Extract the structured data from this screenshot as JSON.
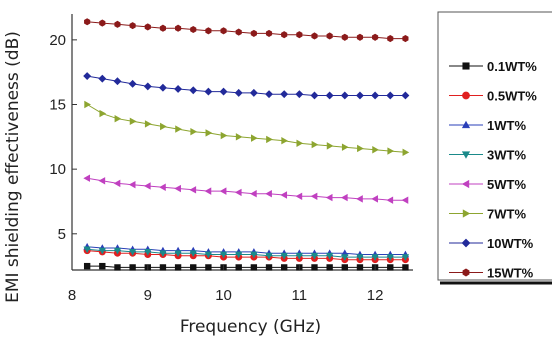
{
  "chart_data": {
    "type": "line",
    "xlabel": "Frequency (GHz)",
    "ylabel": "EMI shielding effectiveness (dB)",
    "xlim": [
      8,
      12.5
    ],
    "ylim": [
      2.2,
      22
    ],
    "x_ticks": [
      8,
      9,
      10,
      11,
      12
    ],
    "y_ticks": [
      5,
      10,
      15,
      20
    ],
    "grid": false,
    "legend_position": "right",
    "x": [
      8.2,
      8.4,
      8.6,
      8.8,
      9.0,
      9.2,
      9.4,
      9.6,
      9.8,
      10.0,
      10.2,
      10.4,
      10.6,
      10.8,
      11.0,
      11.2,
      11.4,
      11.6,
      11.8,
      12.0,
      12.2,
      12.4
    ],
    "series": [
      {
        "name": "0.1WT%",
        "color": "#111111",
        "marker": "square",
        "values": [
          2.5,
          2.5,
          2.4,
          2.4,
          2.4,
          2.4,
          2.4,
          2.4,
          2.4,
          2.4,
          2.4,
          2.4,
          2.4,
          2.4,
          2.4,
          2.4,
          2.4,
          2.4,
          2.4,
          2.4,
          2.4,
          2.4
        ]
      },
      {
        "name": "0.5WT%",
        "color": "#e02020",
        "marker": "circle",
        "values": [
          3.7,
          3.6,
          3.5,
          3.5,
          3.4,
          3.4,
          3.3,
          3.3,
          3.3,
          3.2,
          3.2,
          3.2,
          3.2,
          3.1,
          3.1,
          3.1,
          3.1,
          3.0,
          3.0,
          3.0,
          3.0,
          3.0
        ]
      },
      {
        "name": "1WT%",
        "color": "#2a3fb8",
        "marker": "triangle-up",
        "values": [
          4.0,
          3.9,
          3.9,
          3.8,
          3.8,
          3.7,
          3.7,
          3.7,
          3.6,
          3.6,
          3.6,
          3.6,
          3.5,
          3.5,
          3.5,
          3.5,
          3.5,
          3.5,
          3.4,
          3.4,
          3.4,
          3.4
        ]
      },
      {
        "name": "3WT%",
        "color": "#1a8a8a",
        "marker": "triangle-down",
        "values": [
          3.8,
          3.7,
          3.7,
          3.6,
          3.6,
          3.5,
          3.5,
          3.5,
          3.4,
          3.4,
          3.4,
          3.4,
          3.3,
          3.3,
          3.3,
          3.3,
          3.3,
          3.2,
          3.2,
          3.2,
          3.2,
          3.2
        ]
      },
      {
        "name": "5WT%",
        "color": "#c040c0",
        "marker": "triangle-left",
        "values": [
          9.3,
          9.1,
          8.9,
          8.8,
          8.7,
          8.6,
          8.5,
          8.4,
          8.3,
          8.3,
          8.2,
          8.1,
          8.1,
          8.0,
          7.9,
          7.9,
          7.8,
          7.8,
          7.7,
          7.7,
          7.6,
          7.6
        ]
      },
      {
        "name": "7WT%",
        "color": "#8da530",
        "marker": "triangle-right",
        "values": [
          15.0,
          14.3,
          13.9,
          13.7,
          13.5,
          13.3,
          13.1,
          12.9,
          12.8,
          12.6,
          12.5,
          12.4,
          12.3,
          12.2,
          12.0,
          11.9,
          11.8,
          11.7,
          11.6,
          11.5,
          11.4,
          11.3
        ]
      },
      {
        "name": "10WT%",
        "color": "#222a9a",
        "marker": "diamond",
        "values": [
          17.2,
          17.0,
          16.8,
          16.6,
          16.4,
          16.3,
          16.2,
          16.1,
          16.0,
          16.0,
          15.9,
          15.9,
          15.8,
          15.8,
          15.8,
          15.7,
          15.7,
          15.7,
          15.7,
          15.7,
          15.7,
          15.7
        ]
      },
      {
        "name": "15WT%",
        "color": "#8b1a1a",
        "marker": "hexagon",
        "values": [
          21.4,
          21.3,
          21.2,
          21.1,
          21.0,
          20.9,
          20.9,
          20.8,
          20.7,
          20.7,
          20.6,
          20.5,
          20.5,
          20.4,
          20.4,
          20.3,
          20.3,
          20.2,
          20.2,
          20.2,
          20.1,
          20.1
        ]
      }
    ]
  }
}
